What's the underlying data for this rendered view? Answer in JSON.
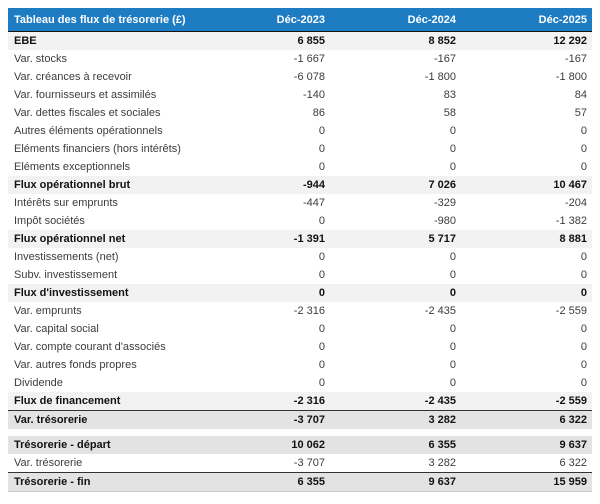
{
  "chart_data": {
    "type": "table",
    "title": "Tableau des flux de trésorerie (£)",
    "columns": [
      "Déc-2023",
      "Déc-2024",
      "Déc-2025"
    ],
    "rows": [
      {
        "label": "EBE",
        "values": [
          "6 855",
          "8 852",
          "12 292"
        ],
        "style": "subtotal"
      },
      {
        "label": "Var. stocks",
        "values": [
          "-1 667",
          "-167",
          "-167"
        ],
        "style": "normal"
      },
      {
        "label": "Var. créances à recevoir",
        "values": [
          "-6 078",
          "-1 800",
          "-1 800"
        ],
        "style": "normal"
      },
      {
        "label": "Var. fournisseurs et assimilés",
        "values": [
          "-140",
          "83",
          "84"
        ],
        "style": "normal"
      },
      {
        "label": "Var. dettes fiscales et sociales",
        "values": [
          "86",
          "58",
          "57"
        ],
        "style": "normal"
      },
      {
        "label": "Autres éléments opérationnels",
        "values": [
          "0",
          "0",
          "0"
        ],
        "style": "normal"
      },
      {
        "label": "Eléments financiers (hors intérêts)",
        "values": [
          "0",
          "0",
          "0"
        ],
        "style": "normal"
      },
      {
        "label": "Eléments exceptionnels",
        "values": [
          "0",
          "0",
          "0"
        ],
        "style": "normal"
      },
      {
        "label": "Flux opérationnel brut",
        "values": [
          "-944",
          "7 026",
          "10 467"
        ],
        "style": "subtotal"
      },
      {
        "label": "Intérêts sur emprunts",
        "values": [
          "-447",
          "-329",
          "-204"
        ],
        "style": "normal"
      },
      {
        "label": "Impôt sociétés",
        "values": [
          "0",
          "-980",
          "-1 382"
        ],
        "style": "normal"
      },
      {
        "label": "Flux opérationnel net",
        "values": [
          "-1 391",
          "5 717",
          "8 881"
        ],
        "style": "subtotal"
      },
      {
        "label": "Investissements (net)",
        "values": [
          "0",
          "0",
          "0"
        ],
        "style": "normal"
      },
      {
        "label": "Subv. investissement",
        "values": [
          "0",
          "0",
          "0"
        ],
        "style": "normal"
      },
      {
        "label": "Flux d'investissement",
        "values": [
          "0",
          "0",
          "0"
        ],
        "style": "subtotal"
      },
      {
        "label": "Var. emprunts",
        "values": [
          "-2 316",
          "-2 435",
          "-2 559"
        ],
        "style": "normal"
      },
      {
        "label": "Var. capital social",
        "values": [
          "0",
          "0",
          "0"
        ],
        "style": "normal"
      },
      {
        "label": "Var. compte courant d'associés",
        "values": [
          "0",
          "0",
          "0"
        ],
        "style": "normal"
      },
      {
        "label": "Var. autres fonds propres",
        "values": [
          "0",
          "0",
          "0"
        ],
        "style": "normal"
      },
      {
        "label": "Dividende",
        "values": [
          "0",
          "0",
          "0"
        ],
        "style": "normal"
      },
      {
        "label": "Flux de financement",
        "values": [
          "-2 316",
          "-2 435",
          "-2 559"
        ],
        "style": "subtotal"
      },
      {
        "label": "Var. trésorerie",
        "values": [
          "-3 707",
          "3 282",
          "6 322"
        ],
        "style": "total",
        "top_border": true
      },
      {
        "style": "spacer"
      },
      {
        "label": "Trésorerie - départ",
        "values": [
          "10 062",
          "6 355",
          "9 637"
        ],
        "style": "total"
      },
      {
        "label": "Var. trésorerie",
        "values": [
          "-3 707",
          "3 282",
          "6 322"
        ],
        "style": "normal"
      },
      {
        "label": "Trésorerie - fin",
        "values": [
          "6 355",
          "9 637",
          "15 959"
        ],
        "style": "total",
        "top_border": true,
        "bottom_border": true
      }
    ]
  },
  "colors": {
    "header_bg": "#1e7cc3",
    "header_text": "#ffffff",
    "subtotal_bg": "#f2f2f2",
    "total_bg": "#e3e3e3",
    "dark_border": "#333333",
    "light_border": "#cccccc",
    "text_normal": "#3c3c3c",
    "text_strong": "#121212",
    "page_bg": "#ffffff"
  }
}
